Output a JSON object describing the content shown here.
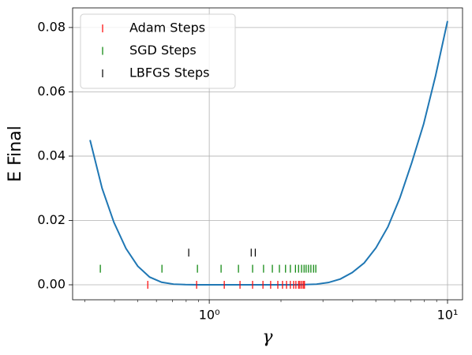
{
  "chart_data": {
    "type": "line",
    "xscale": "log",
    "xlabel": "γ",
    "ylabel": "E Final",
    "xlim": [
      0.267,
      11.56
    ],
    "ylim": [
      -0.00466,
      0.0861
    ],
    "xticks": [
      {
        "value": 1,
        "label": "10⁰"
      },
      {
        "value": 10,
        "label": "10¹"
      }
    ],
    "xminorticks": [
      0.3,
      0.4,
      0.5,
      0.6,
      0.7,
      0.8,
      0.9,
      2,
      3,
      4,
      5,
      6,
      7,
      8,
      9
    ],
    "yticks": [
      {
        "value": 0,
        "label": "0.00"
      },
      {
        "value": 0.02,
        "label": "0.02"
      },
      {
        "value": 0.04,
        "label": "0.04"
      },
      {
        "value": 0.06,
        "label": "0.06"
      },
      {
        "value": 0.08,
        "label": "0.08"
      }
    ],
    "grid": true,
    "legend": "upper left",
    "curve": {
      "color": "#1f77b4",
      "x": [
        0.316,
        0.355,
        0.398,
        0.447,
        0.501,
        0.562,
        0.631,
        0.708,
        0.794,
        0.891,
        1,
        1.12,
        1.26,
        1.41,
        1.58,
        1.78,
        2,
        2.24,
        2.51,
        2.82,
        3.16,
        3.55,
        3.98,
        4.47,
        5.01,
        5.62,
        6.31,
        7.08,
        7.94,
        8.91,
        10
      ],
      "values": [
        0.045,
        0.03,
        0.0194,
        0.0113,
        0.0058,
        0.0024,
        0.0008,
        0.0002,
        5e-05,
        0,
        0,
        0,
        0,
        0,
        0,
        0,
        0,
        0,
        5e-05,
        0.0002,
        0.0007,
        0.0018,
        0.0038,
        0.0068,
        0.0115,
        0.018,
        0.027,
        0.038,
        0.05,
        0.065,
        0.082
      ]
    },
    "series": [
      {
        "name": "Adam Steps",
        "color": "#ff0000",
        "x": [
          0.552,
          0.885,
          1.156,
          1.346,
          1.52,
          1.68,
          1.81,
          1.94,
          2.03,
          2.11,
          2.19,
          2.26,
          2.31,
          2.37,
          2.4,
          2.44,
          2.48,
          2.51
        ],
        "values": [
          0,
          0,
          0,
          0,
          0,
          0,
          0,
          0,
          0,
          0,
          0,
          0,
          0,
          0,
          0,
          0,
          0,
          0
        ]
      },
      {
        "name": "SGD Steps",
        "color": "#008000",
        "x": [
          0.349,
          0.633,
          0.892,
          1.121,
          1.326,
          1.52,
          1.69,
          1.84,
          1.97,
          2.09,
          2.19,
          2.3,
          2.37,
          2.44,
          2.5,
          2.55,
          2.61,
          2.67,
          2.74,
          2.8
        ],
        "values": [
          0.005,
          0.005,
          0.005,
          0.005,
          0.005,
          0.005,
          0.005,
          0.005,
          0.005,
          0.005,
          0.005,
          0.005,
          0.005,
          0.005,
          0.005,
          0.005,
          0.005,
          0.005,
          0.005,
          0.005
        ]
      },
      {
        "name": "LBFGS Steps",
        "color": "#000000",
        "x": [
          0.82,
          1.5,
          1.56
        ],
        "values": [
          0.01,
          0.01,
          0.01
        ]
      }
    ]
  }
}
